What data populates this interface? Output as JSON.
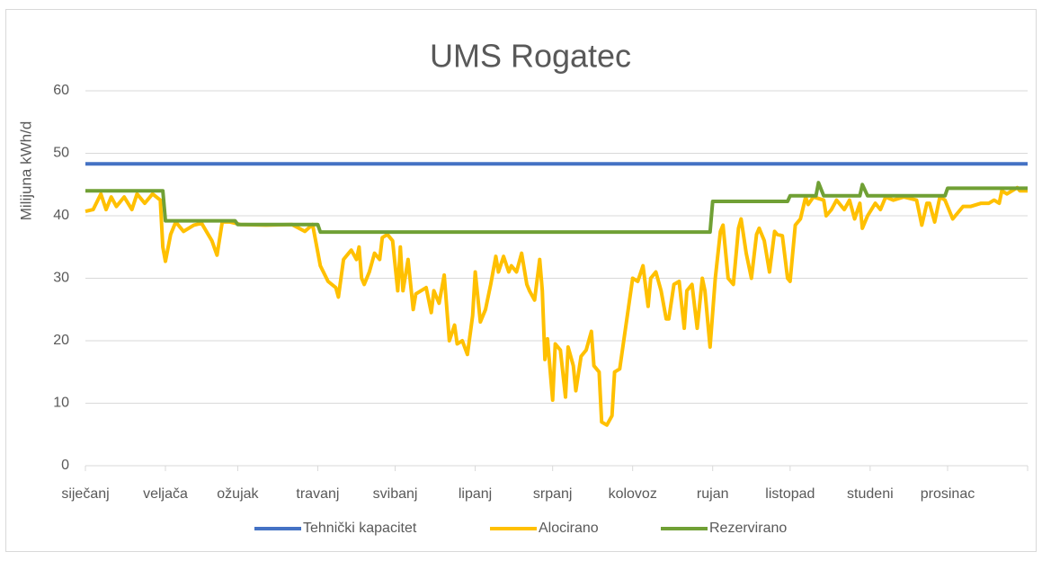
{
  "chart_data": {
    "type": "line",
    "title": "UMS Rogatec",
    "y_label": "Milijuna kWh/d",
    "xlim": [
      0,
      365
    ],
    "xticks": [
      {
        "value": 0,
        "label": "siječanj"
      },
      {
        "value": 31,
        "label": "veljača"
      },
      {
        "value": 59,
        "label": "ožujak"
      },
      {
        "value": 90,
        "label": "travanj"
      },
      {
        "value": 120,
        "label": "svibanj"
      },
      {
        "value": 151,
        "label": "lipanj"
      },
      {
        "value": 181,
        "label": "srpanj"
      },
      {
        "value": 212,
        "label": "kolovoz"
      },
      {
        "value": 243,
        "label": "rujan"
      },
      {
        "value": 273,
        "label": "listopad"
      },
      {
        "value": 304,
        "label": "studeni"
      },
      {
        "value": 334,
        "label": "prosinac"
      },
      365
    ],
    "ylim": [
      0,
      60
    ],
    "yticks": [
      0,
      10,
      20,
      30,
      40,
      50,
      60
    ],
    "grid": true,
    "legend": "bottom",
    "series": [
      {
        "name": "Tehnički kapacitet",
        "color": "#4472c4",
        "x": [
          0,
          365
        ],
        "values": [
          48.3,
          48.3
        ]
      },
      {
        "name": "Alocirano",
        "color": "#ffc000",
        "x": [
          0,
          3,
          6,
          8,
          10,
          12,
          15,
          18,
          20,
          23,
          26,
          29,
          30,
          31,
          33,
          35,
          38,
          42,
          45,
          49,
          51,
          53,
          56,
          60,
          70,
          80,
          85,
          88,
          91,
          94,
          97,
          98,
          100,
          103,
          105,
          106,
          107,
          108,
          110,
          112,
          114,
          115,
          117,
          119,
          121,
          122,
          123,
          125,
          127,
          128,
          132,
          134,
          135,
          137,
          139,
          141,
          143,
          144,
          146,
          148,
          150,
          151,
          153,
          155,
          157,
          159,
          160,
          162,
          164,
          165,
          167,
          169,
          171,
          172,
          174,
          176,
          177,
          178,
          179,
          181,
          182,
          184,
          186,
          187,
          189,
          190,
          192,
          194,
          196,
          197,
          199,
          200,
          202,
          204,
          205,
          207,
          212,
          214,
          216,
          218,
          219,
          221,
          223,
          225,
          226,
          228,
          230,
          232,
          233,
          235,
          237,
          239,
          240,
          242,
          244,
          246,
          247,
          249,
          251,
          253,
          254,
          256,
          258,
          260,
          261,
          263,
          265,
          267,
          268,
          270,
          272,
          273,
          275,
          277,
          279,
          280,
          282,
          286,
          287,
          289,
          291,
          294,
          296,
          298,
          300,
          301,
          303,
          306,
          308,
          310,
          313,
          317,
          322,
          324,
          326,
          327,
          329,
          331,
          333,
          336,
          340,
          343,
          347,
          350,
          352,
          354,
          355,
          357,
          361,
          362,
          365
        ],
        "values": [
          40.7,
          41,
          43.5,
          41,
          43,
          41.5,
          43,
          41,
          43.5,
          42,
          43.5,
          42.5,
          35,
          32.7,
          37,
          39,
          37.5,
          38.5,
          38.8,
          36,
          33.7,
          39,
          39,
          38.6,
          38.5,
          38.6,
          37.5,
          38.6,
          32,
          29.5,
          28.5,
          27,
          33,
          34.5,
          33,
          35,
          30,
          29,
          31,
          34,
          33,
          36.5,
          37,
          36,
          28,
          35,
          28,
          33,
          25,
          27.5,
          28.5,
          24.5,
          28,
          26,
          30.5,
          20,
          22.5,
          19.5,
          20,
          17.8,
          24,
          31,
          23,
          25,
          29,
          33.5,
          31,
          33.5,
          31,
          32,
          31,
          34,
          29,
          28,
          26.5,
          33,
          28,
          17,
          20.3,
          10.5,
          19.5,
          18.5,
          11,
          19,
          16,
          12,
          17.5,
          18.5,
          21.5,
          16,
          15,
          7,
          6.5,
          8,
          15,
          15.5,
          30,
          29.5,
          32,
          25.5,
          30,
          31,
          28,
          23.5,
          23.5,
          29,
          29.5,
          22,
          28,
          29,
          22,
          30,
          28,
          19,
          30,
          37.5,
          38.5,
          30,
          29,
          38,
          39.5,
          34,
          30,
          37,
          38,
          36,
          31,
          37.5,
          37,
          36.8,
          30,
          29.5,
          38.5,
          39.5,
          43,
          41.8,
          43,
          42.5,
          40,
          41,
          42.5,
          41,
          42.5,
          39.5,
          42,
          38,
          40,
          42,
          41,
          43,
          42.5,
          43,
          42.5,
          38.5,
          42,
          42,
          39,
          43,
          42.5,
          39.5,
          41.5,
          41.5,
          42,
          42,
          42.5,
          42,
          44,
          43.5,
          44.5,
          44,
          44
        ]
      },
      {
        "name": "Rezervirano",
        "color": "#70a035",
        "x": [
          0,
          30,
          31,
          58,
          59,
          90,
          91,
          242,
          243,
          272,
          273,
          283,
          284,
          286,
          300,
          301,
          303,
          333,
          334,
          365
        ],
        "values": [
          44,
          44,
          39.2,
          39.2,
          38.6,
          38.6,
          37.4,
          37.4,
          42.3,
          42.3,
          43.2,
          43.2,
          45.3,
          43.2,
          43.2,
          45,
          43.2,
          43.2,
          44.4,
          44.4
        ]
      }
    ]
  }
}
